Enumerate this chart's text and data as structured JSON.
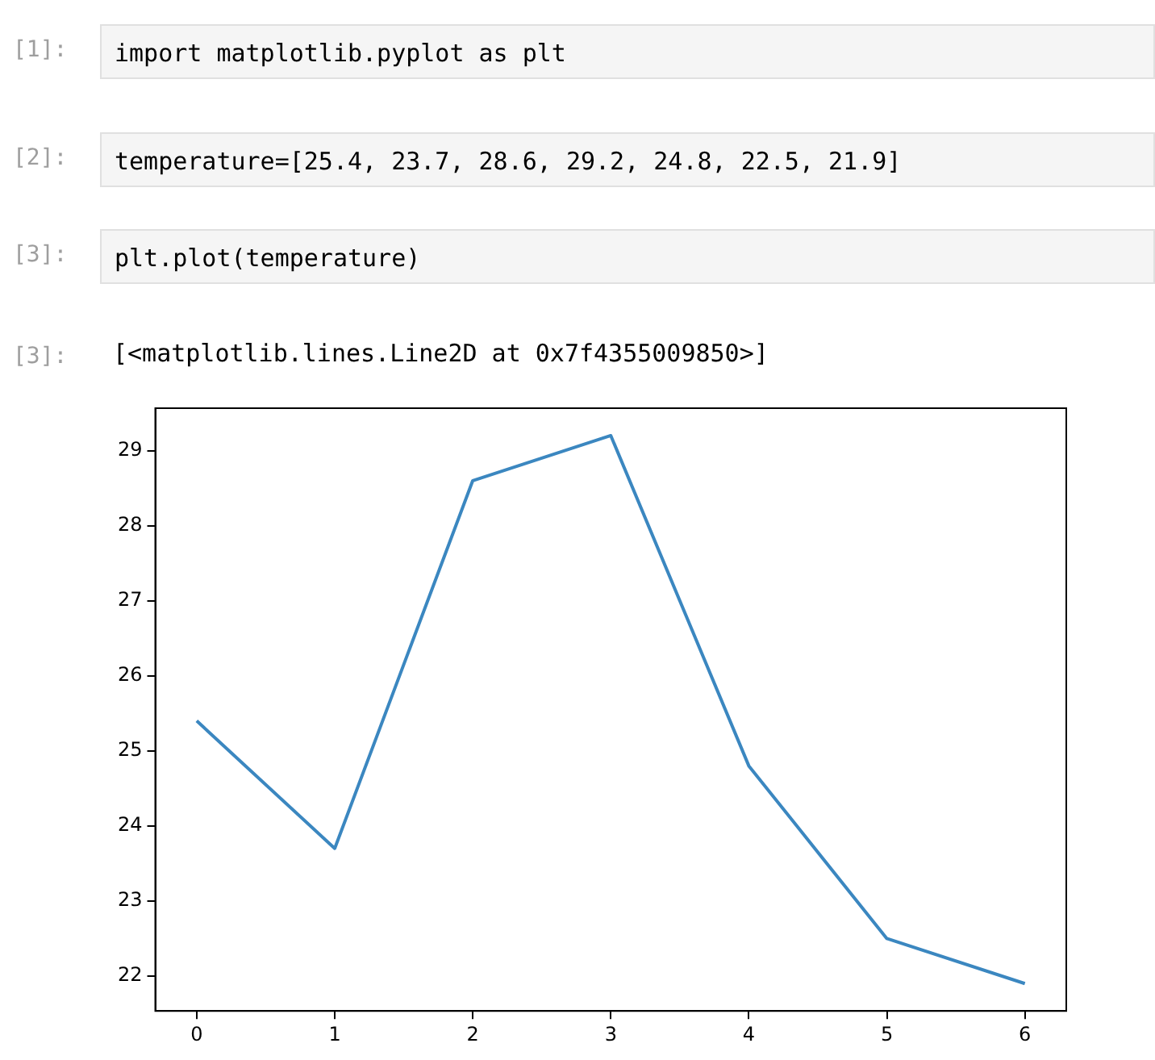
{
  "chart_data": {
    "type": "line",
    "annotations": [
      "[1]:",
      "import matplotlib.pyplot as plt",
      "[2]:",
      "temperature=[25.4, 23.7, 28.6, 29.2, 24.8, 22.5, 21.9]",
      "[3]:",
      "plt.plot(temperature)",
      "[3]:",
      "[<matplotlib.lines.Line2D at 0x7f4355009850>]"
    ],
    "x": [
      0,
      1,
      2,
      3,
      4,
      5,
      6
    ],
    "series": [
      {
        "color": "#3b87c0",
        "values": [
          25.4,
          23.7,
          28.6,
          29.2,
          24.8,
          22.5,
          21.9
        ]
      }
    ],
    "xlim": [
      -0.3,
      6.3
    ],
    "xticks": [
      0,
      1,
      2,
      3,
      4,
      5,
      6
    ],
    "ylim": [
      21.535,
      29.565
    ],
    "yticks": [
      22,
      23,
      24,
      25,
      26,
      27,
      28,
      29
    ],
    "legend": false,
    "marker": "none"
  }
}
